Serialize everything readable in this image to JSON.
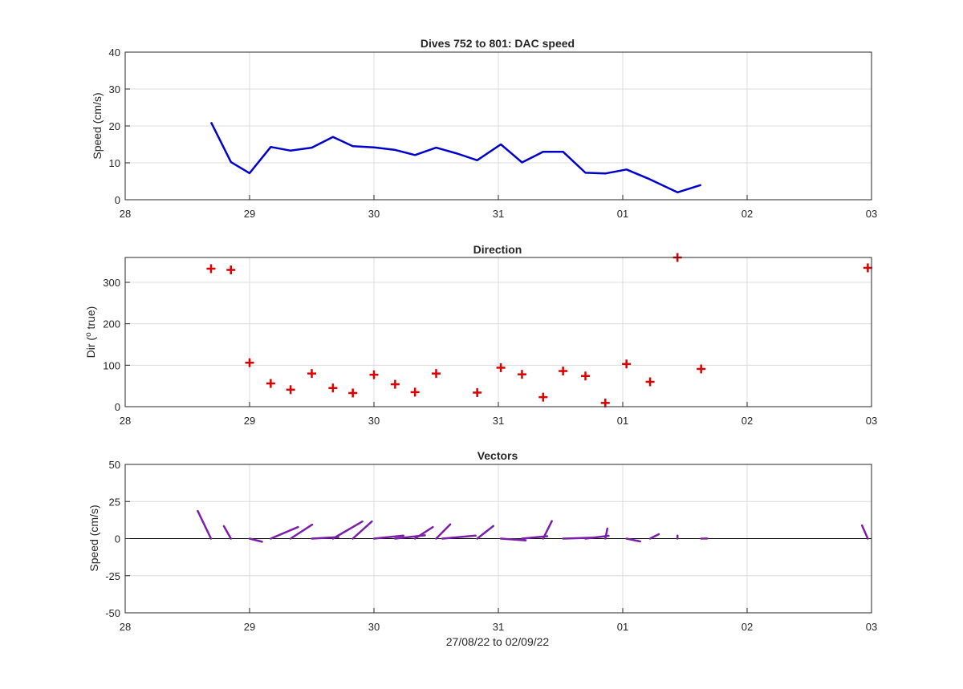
{
  "colors": {
    "speed_line": "#0000cc",
    "direction_marker": "#dd0000",
    "vectors": "#7a1fa8",
    "axis": "#262626",
    "grid": "#dcdcdc"
  },
  "x_ticks": [
    "28",
    "29",
    "30",
    "31",
    "01",
    "02",
    "03"
  ],
  "xlabel": "27/08/22 to 02/09/22",
  "chart_data": [
    {
      "type": "line",
      "title": "Dives 752 to 801: DAC speed",
      "ylabel": "Speed (cm/s)",
      "xlim": [
        28,
        34
      ],
      "ylim": [
        0,
        40
      ],
      "yticks": [
        "0",
        "10",
        "20",
        "30",
        "40"
      ],
      "grid": true,
      "x": [
        28.69,
        28.85,
        29.0,
        29.17,
        29.33,
        29.5,
        29.67,
        29.83,
        30.0,
        30.17,
        30.33,
        30.5,
        30.67,
        30.83,
        31.02,
        31.19,
        31.36,
        31.52,
        31.7,
        31.86,
        32.03,
        32.2,
        32.44,
        32.63
      ],
      "y": [
        21,
        10.2,
        7.2,
        14.3,
        13.3,
        14.1,
        17,
        14.5,
        14.2,
        13.5,
        12.1,
        14.1,
        12.5,
        10.7,
        15,
        10.1,
        13,
        13,
        7.3,
        7.1,
        8.2,
        5.8,
        2,
        4
      ]
    },
    {
      "type": "scatter",
      "title": "Direction",
      "ylabel": "Dir (° true)",
      "ylabel_parts": [
        "Dir (",
        "o",
        " true)"
      ],
      "xlim": [
        28,
        34
      ],
      "ylim": [
        0,
        360
      ],
      "yticks": [
        "0",
        "100",
        "200",
        "300"
      ],
      "grid": true,
      "marker": "+",
      "x": [
        28.69,
        28.85,
        29.0,
        29.17,
        29.33,
        29.5,
        29.67,
        29.83,
        30.0,
        30.17,
        30.33,
        30.5,
        30.83,
        31.02,
        31.19,
        31.36,
        31.52,
        31.7,
        31.86,
        32.03,
        32.22,
        32.44,
        32.63,
        33.97
      ],
      "y": [
        333,
        330,
        106,
        56,
        41,
        80,
        45,
        33,
        77,
        54,
        35,
        80,
        34,
        94,
        78,
        23,
        86,
        74,
        9,
        103,
        60,
        360,
        91,
        335
      ]
    },
    {
      "type": "vector",
      "title": "Vectors",
      "ylabel": "Speed (cm/s)",
      "xlim": [
        28,
        34
      ],
      "ylim": [
        -50,
        50
      ],
      "yticks": [
        "-50",
        "-25",
        "0",
        "25",
        "50"
      ],
      "grid": true,
      "segments": [
        {
          "x": 28.69,
          "u": -3.2,
          "v": 18.6
        },
        {
          "x": 28.85,
          "u": -1.7,
          "v": 8.4
        },
        {
          "x": 29.0,
          "u": 3.0,
          "v": -2.1
        },
        {
          "x": 29.17,
          "u": 6.6,
          "v": 7.8
        },
        {
          "x": 29.33,
          "u": 5.2,
          "v": 9.4
        },
        {
          "x": 29.5,
          "u": 6.4,
          "v": 1.0
        },
        {
          "x": 29.67,
          "u": 7.1,
          "v": 11.5
        },
        {
          "x": 29.83,
          "u": 4.6,
          "v": 11.6
        },
        {
          "x": 30.0,
          "u": 7.1,
          "v": 2.0
        },
        {
          "x": 30.17,
          "u": 7.2,
          "v": 2.2
        },
        {
          "x": 30.33,
          "u": 4.3,
          "v": 7.8
        },
        {
          "x": 30.5,
          "u": 3.4,
          "v": 9.6
        },
        {
          "x": 30.55,
          "u": 8.0,
          "v": 2.0
        },
        {
          "x": 30.83,
          "u": 3.9,
          "v": 8.5
        },
        {
          "x": 31.02,
          "u": 6.0,
          "v": -1.2
        },
        {
          "x": 31.19,
          "u": 6.1,
          "v": 1.6
        },
        {
          "x": 31.36,
          "u": 2.1,
          "v": 11.8
        },
        {
          "x": 31.52,
          "u": 6.8,
          "v": 0.6
        },
        {
          "x": 31.7,
          "u": 5.6,
          "v": 1.9
        },
        {
          "x": 31.86,
          "u": 0.5,
          "v": 6.8
        },
        {
          "x": 32.03,
          "u": 3.3,
          "v": -1.9
        },
        {
          "x": 32.22,
          "u": 2.1,
          "v": 3.0
        },
        {
          "x": 32.44,
          "u": 0.0,
          "v": 2.0
        },
        {
          "x": 32.63,
          "u": 1.5,
          "v": 0.1
        },
        {
          "x": 33.97,
          "u": -1.4,
          "v": 8.9
        }
      ]
    }
  ]
}
